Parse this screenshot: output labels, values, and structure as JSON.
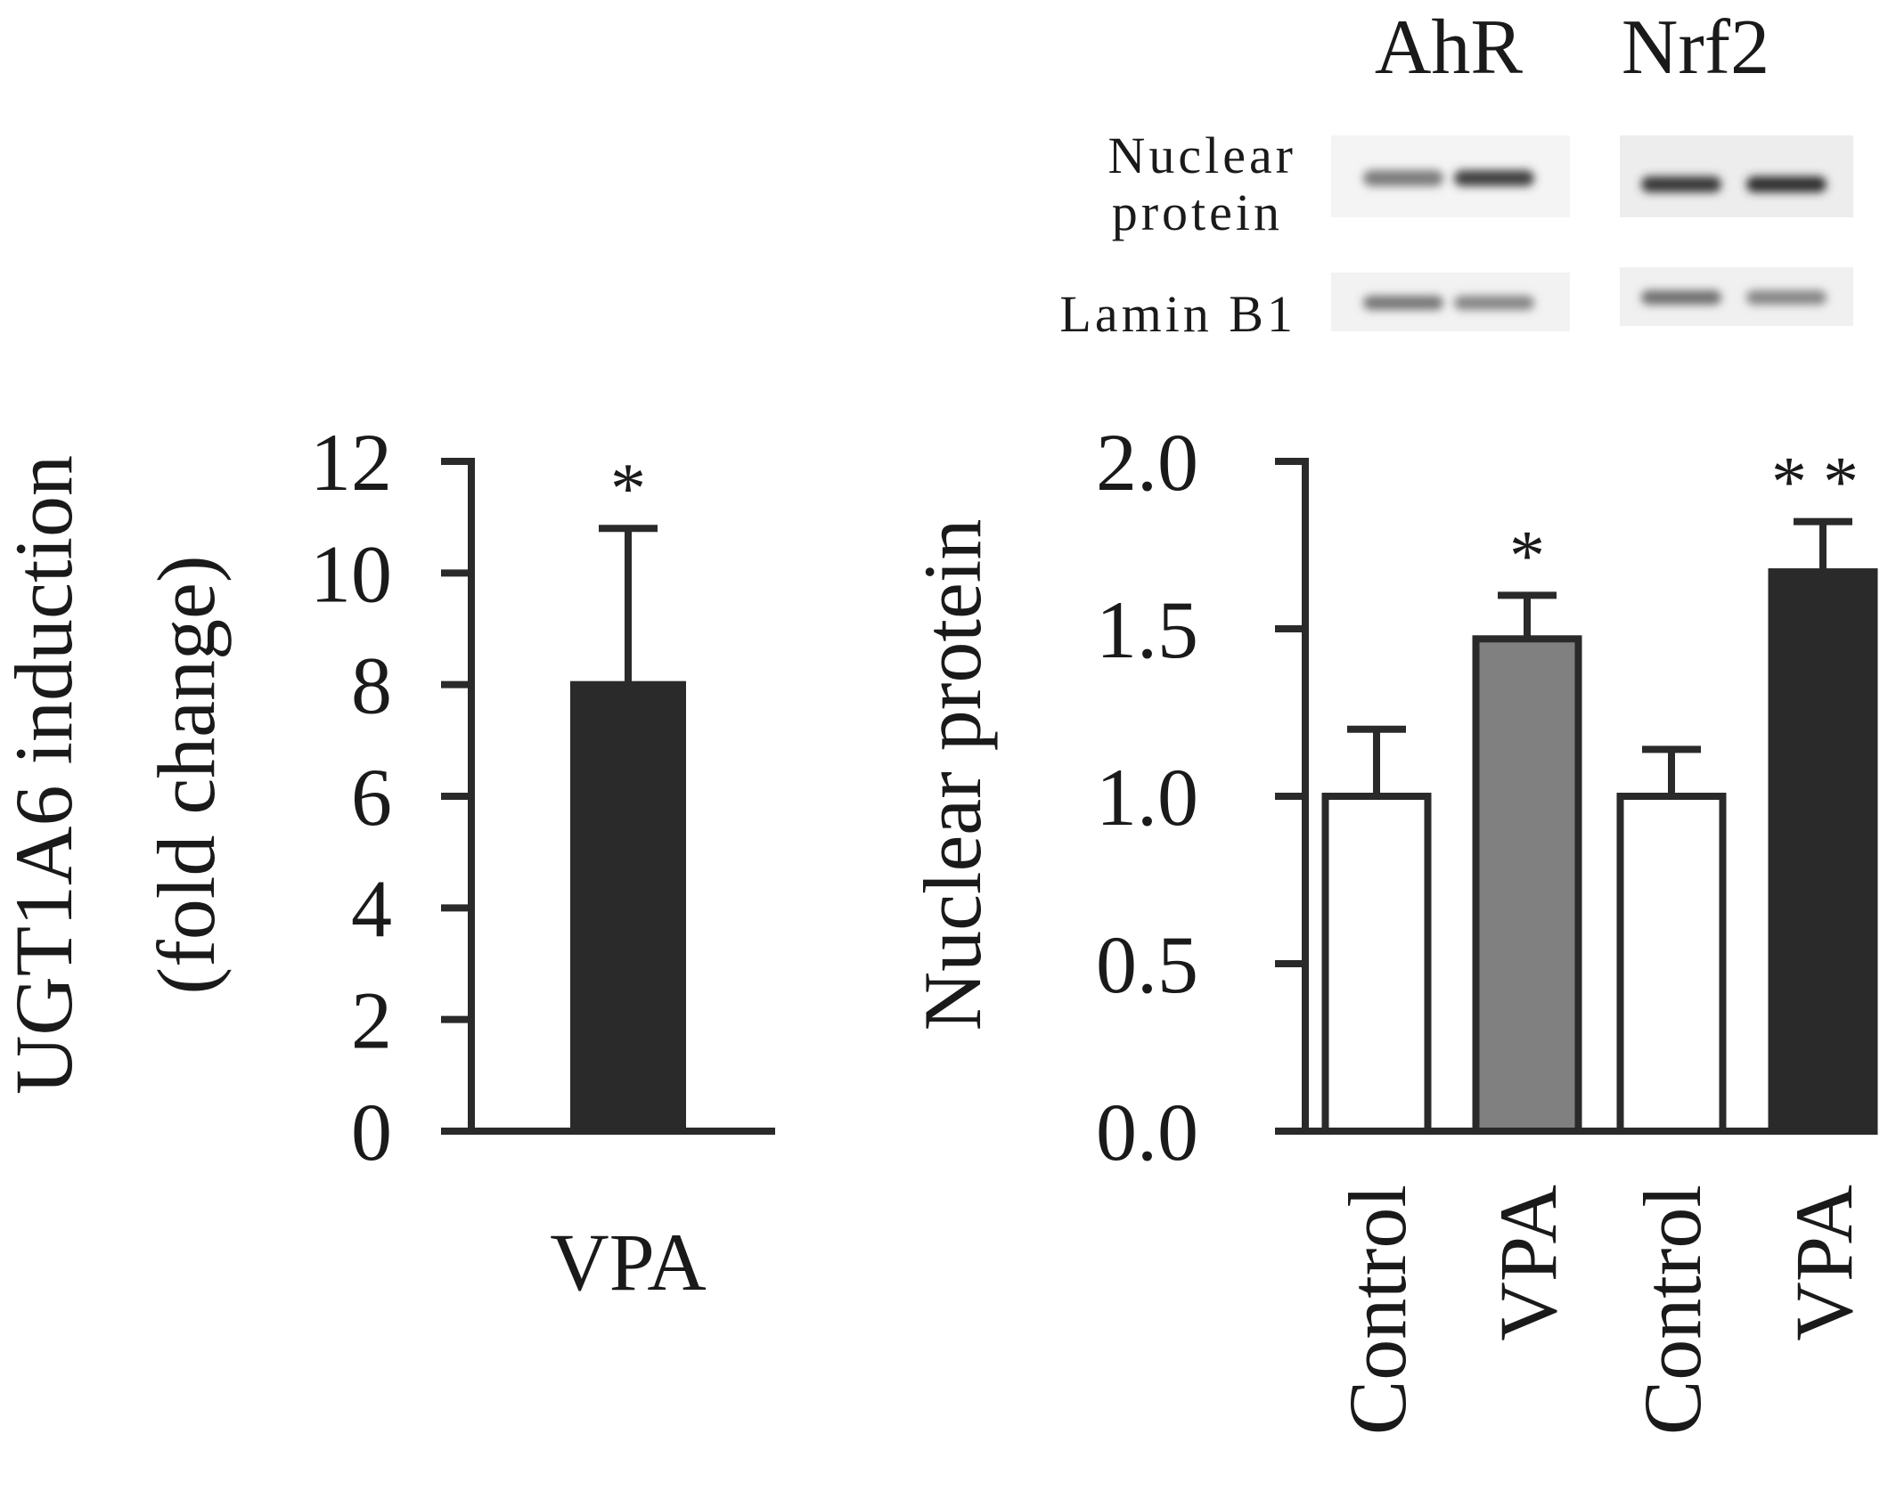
{
  "colors": {
    "ink": "#2a2a2a",
    "vpa_dark": "#2a2a2a",
    "vpa_gray": "#808080",
    "control": "#ffffff"
  },
  "blot": {
    "headers": [
      "AhR",
      "Nrf2"
    ],
    "row_labels": {
      "nuclear_line1": "Nuclear",
      "nuclear_line2": "protein",
      "lamin": "Lamin B1"
    },
    "intensities": {
      "nuclear": [
        0.45,
        0.8,
        0.85,
        0.9
      ],
      "lamin": [
        0.55,
        0.45,
        0.6,
        0.45
      ]
    }
  },
  "chart_data": [
    {
      "type": "bar",
      "ylabel_line1": "UGT1A6 induction",
      "ylabel_line2": "(fold change)",
      "ylim": [
        0,
        12
      ],
      "yticks": [
        "0",
        "2",
        "4",
        "6",
        "8",
        "10",
        "12"
      ],
      "categories": [
        "VPA"
      ],
      "values": [
        8.0
      ],
      "errors": [
        2.8
      ],
      "significance": [
        "*"
      ],
      "bar_colors": [
        "#2a2a2a"
      ]
    },
    {
      "type": "bar",
      "ylabel": "Nuclear protein",
      "ylim": [
        0,
        2.0
      ],
      "yticks": [
        "0.0",
        "0.5",
        "1.0",
        "1.5",
        "2.0"
      ],
      "categories": [
        "Control",
        "VPA",
        "Control",
        "VPA"
      ],
      "values": [
        1.0,
        1.47,
        1.0,
        1.67
      ],
      "errors": [
        0.2,
        0.13,
        0.14,
        0.15
      ],
      "significance": [
        "",
        "*",
        "",
        "**"
      ],
      "bar_colors": [
        "#ffffff",
        "#808080",
        "#ffffff",
        "#2a2a2a"
      ]
    }
  ]
}
